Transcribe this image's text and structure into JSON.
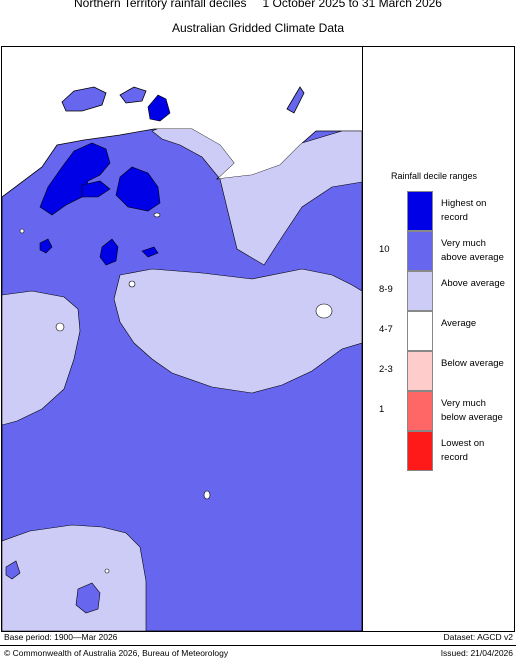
{
  "title": {
    "line1_left": "Northern Territory rainfall deciles",
    "line1_right": "1 October 2025 to 31 March 2026",
    "line2": "Australian Gridded Climate Data"
  },
  "legend": {
    "title": "Rainfall decile ranges",
    "items": [
      {
        "label": "Highest on record",
        "decile": "",
        "color": "#0000e6"
      },
      {
        "label": "Very much above average",
        "decile": "10",
        "color": "#6666ee"
      },
      {
        "label": "Above average",
        "decile": "8-9",
        "color": "#ccccf7"
      },
      {
        "label": "Average",
        "decile": "4-7",
        "color": "#ffffff"
      },
      {
        "label": "Below average",
        "decile": "2-3",
        "color": "#ffcccc"
      },
      {
        "label": "Very much below average",
        "decile": "1",
        "color": "#ff6666"
      },
      {
        "label": "Lowest on record",
        "decile": "",
        "color": "#ff1a1a"
      }
    ]
  },
  "footer": {
    "base_period": "Base period: 1900—Mar 2026",
    "dataset": "Dataset: AGCD v2",
    "copyright": "© Commonwealth of Australia 2026, Bureau of Meteorology",
    "issued": "Issued: 21/04/2026"
  }
}
